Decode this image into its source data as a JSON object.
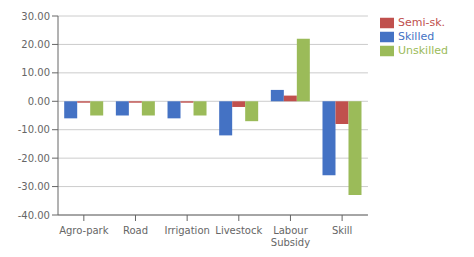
{
  "chart_data": {
    "type": "bar",
    "categories": [
      "Agro-park",
      "Road",
      "Irrigation",
      "Livestock",
      "Labour\nSubsidy",
      "Skill"
    ],
    "series": [
      {
        "name": "Skilled",
        "color": "#4472C4",
        "values": [
          -6.0,
          -5.0,
          -6.0,
          -12.0,
          4.0,
          -26.0
        ]
      },
      {
        "name": "Semi-sk.",
        "color": "#C0504D",
        "values": [
          -0.5,
          -0.5,
          -0.5,
          -2.0,
          2.0,
          -8.0
        ]
      },
      {
        "name": "Unskilled",
        "color": "#9BBB59",
        "values": [
          -5.0,
          -5.0,
          -5.0,
          -7.0,
          22.0,
          -33.0
        ]
      }
    ],
    "ylim": [
      -40,
      30
    ],
    "yticks": [
      {
        "value": -40,
        "label": "-40.00"
      },
      {
        "value": -30,
        "label": "-30.00"
      },
      {
        "value": -20,
        "label": "-20.00"
      },
      {
        "value": -10,
        "label": "-10.00"
      },
      {
        "value": 0,
        "label": "0.00"
      },
      {
        "value": 10,
        "label": "10.00"
      },
      {
        "value": 20,
        "label": "20.00"
      },
      {
        "value": 30,
        "label": "30.00"
      }
    ],
    "grid": true,
    "legend": "right"
  }
}
